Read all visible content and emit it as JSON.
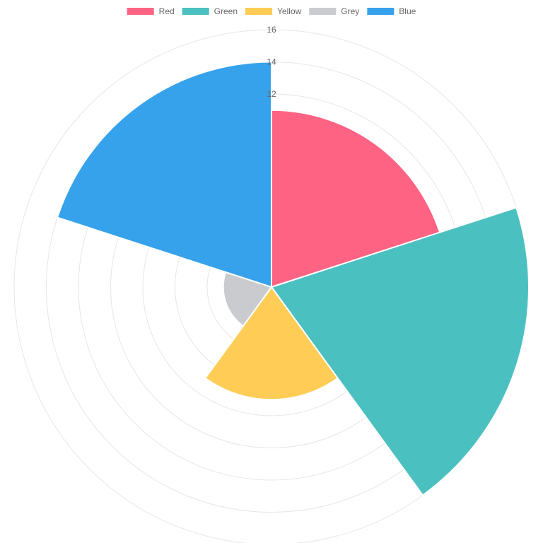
{
  "chart_data": {
    "type": "polarArea",
    "categories": [
      "Red",
      "Green",
      "Yellow",
      "Grey",
      "Blue"
    ],
    "values": [
      11,
      16,
      7,
      3,
      14
    ],
    "colors": [
      "#ff6384",
      "#4bc0c0",
      "#ffcd56",
      "#c9cbcf",
      "#36a2eb"
    ],
    "r_range": [
      0,
      16
    ],
    "r_ticks": [
      16,
      14,
      12
    ],
    "legend_position": "top",
    "grid": true
  }
}
